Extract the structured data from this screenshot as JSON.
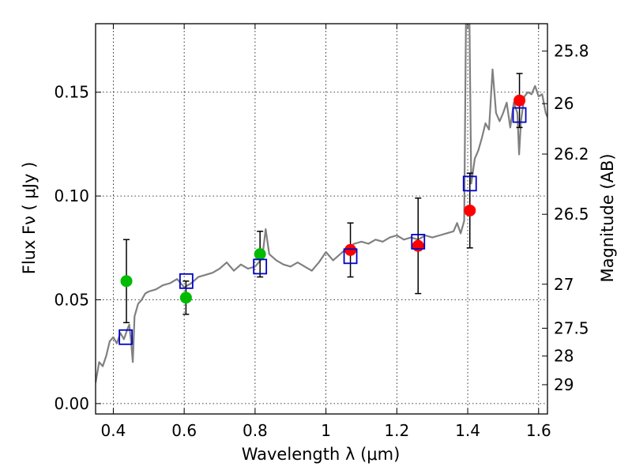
{
  "chart_data": {
    "type": "scatter",
    "title": "",
    "xlabel": "Wavelength  λ (μm)",
    "ylabel": "Flux  Fν  ( μJy )",
    "y2label": "Magnitude (AB)",
    "xlim": [
      0.35,
      1.625
    ],
    "ylim": [
      -0.005,
      0.183
    ],
    "xticks": [
      0.4,
      0.6,
      0.8,
      1.0,
      1.2,
      1.4,
      1.6
    ],
    "xtick_labels": [
      "0.4",
      "0.6",
      "0.8",
      "1",
      "1.2",
      "1.4",
      "1.6"
    ],
    "yticks": [
      0.0,
      0.05,
      0.1,
      0.15
    ],
    "ytick_labels": [
      "0.00",
      "0.05",
      "0.10",
      "0.15"
    ],
    "mag_ticks": [
      {
        "label": "25.8",
        "flux": 0.1698
      },
      {
        "label": "26",
        "flux": 0.1445
      },
      {
        "label": "26.2",
        "flux": 0.1202
      },
      {
        "label": "26.5",
        "flux": 0.0912
      },
      {
        "label": "27",
        "flux": 0.0575
      },
      {
        "label": "27.5",
        "flux": 0.0363
      },
      {
        "label": "28",
        "flux": 0.0229
      },
      {
        "label": "29",
        "flux": 0.0091
      }
    ],
    "grid": true,
    "colors": {
      "spectrum": "#808080",
      "green_points": "#00bb00",
      "red_points": "#ff0000",
      "model_boxes": "#0000cc",
      "errorbars": "#000000"
    },
    "series": [
      {
        "type": "line",
        "points": [
          [
            0.35,
            0.01
          ],
          [
            0.36,
            0.02
          ],
          [
            0.37,
            0.018
          ],
          [
            0.38,
            0.023
          ],
          [
            0.39,
            0.03
          ],
          [
            0.4,
            0.032
          ],
          [
            0.41,
            0.029
          ],
          [
            0.42,
            0.034
          ],
          [
            0.43,
            0.031
          ],
          [
            0.44,
            0.036
          ],
          [
            0.445,
            0.038
          ],
          [
            0.45,
            0.03
          ],
          [
            0.455,
            0.02
          ],
          [
            0.46,
            0.042
          ],
          [
            0.47,
            0.048
          ],
          [
            0.48,
            0.05
          ],
          [
            0.49,
            0.053
          ],
          [
            0.5,
            0.054
          ],
          [
            0.52,
            0.055
          ],
          [
            0.54,
            0.057
          ],
          [
            0.56,
            0.058
          ],
          [
            0.58,
            0.06
          ],
          [
            0.6,
            0.056
          ],
          [
            0.62,
            0.058
          ],
          [
            0.64,
            0.061
          ],
          [
            0.66,
            0.062
          ],
          [
            0.68,
            0.063
          ],
          [
            0.7,
            0.065
          ],
          [
            0.72,
            0.068
          ],
          [
            0.74,
            0.064
          ],
          [
            0.76,
            0.067
          ],
          [
            0.78,
            0.065
          ],
          [
            0.8,
            0.066
          ],
          [
            0.81,
            0.068
          ],
          [
            0.82,
            0.07
          ],
          [
            0.83,
            0.084
          ],
          [
            0.84,
            0.072
          ],
          [
            0.86,
            0.069
          ],
          [
            0.88,
            0.067
          ],
          [
            0.9,
            0.066
          ],
          [
            0.92,
            0.068
          ],
          [
            0.94,
            0.066
          ],
          [
            0.96,
            0.064
          ],
          [
            0.98,
            0.068
          ],
          [
            1.0,
            0.073
          ],
          [
            1.02,
            0.069
          ],
          [
            1.04,
            0.072
          ],
          [
            1.06,
            0.075
          ],
          [
            1.08,
            0.077
          ],
          [
            1.1,
            0.078
          ],
          [
            1.12,
            0.077
          ],
          [
            1.14,
            0.079
          ],
          [
            1.16,
            0.078
          ],
          [
            1.18,
            0.08
          ],
          [
            1.2,
            0.081
          ],
          [
            1.22,
            0.079
          ],
          [
            1.24,
            0.08
          ],
          [
            1.26,
            0.079
          ],
          [
            1.28,
            0.081
          ],
          [
            1.3,
            0.08
          ],
          [
            1.32,
            0.081
          ],
          [
            1.34,
            0.082
          ],
          [
            1.36,
            0.083
          ],
          [
            1.37,
            0.087
          ],
          [
            1.38,
            0.082
          ],
          [
            1.39,
            0.088
          ],
          [
            1.395,
            0.183
          ],
          [
            1.405,
            0.183
          ],
          [
            1.41,
            0.106
          ],
          [
            1.42,
            0.118
          ],
          [
            1.43,
            0.122
          ],
          [
            1.44,
            0.128
          ],
          [
            1.45,
            0.135
          ],
          [
            1.46,
            0.132
          ],
          [
            1.47,
            0.161
          ],
          [
            1.48,
            0.14
          ],
          [
            1.49,
            0.136
          ],
          [
            1.5,
            0.14
          ],
          [
            1.51,
            0.145
          ],
          [
            1.52,
            0.133
          ],
          [
            1.53,
            0.145
          ],
          [
            1.54,
            0.14
          ],
          [
            1.545,
            0.12
          ],
          [
            1.55,
            0.136
          ],
          [
            1.56,
            0.148
          ],
          [
            1.57,
            0.15
          ],
          [
            1.58,
            0.149
          ],
          [
            1.59,
            0.153
          ],
          [
            1.6,
            0.148
          ],
          [
            1.61,
            0.149
          ],
          [
            1.62,
            0.14
          ],
          [
            1.625,
            0.138
          ]
        ]
      },
      {
        "type": "scatter",
        "marker": "circle",
        "color": "green",
        "points": [
          {
            "x": 0.437,
            "y": 0.059,
            "err": 0.02
          },
          {
            "x": 0.605,
            "y": 0.051,
            "err": 0.008
          },
          {
            "x": 0.814,
            "y": 0.072,
            "err": 0.011
          }
        ]
      },
      {
        "type": "scatter",
        "marker": "circle",
        "color": "red",
        "points": [
          {
            "x": 1.069,
            "y": 0.074,
            "err": 0.013
          },
          {
            "x": 1.26,
            "y": 0.076,
            "err": 0.023
          },
          {
            "x": 1.406,
            "y": 0.093,
            "err": 0.018
          },
          {
            "x": 1.546,
            "y": 0.146,
            "err": 0.013
          }
        ]
      },
      {
        "type": "scatter",
        "marker": "square-open",
        "color": "blue",
        "points": [
          {
            "x": 0.435,
            "y": 0.032
          },
          {
            "x": 0.606,
            "y": 0.059
          },
          {
            "x": 0.814,
            "y": 0.066
          },
          {
            "x": 1.069,
            "y": 0.071
          },
          {
            "x": 1.26,
            "y": 0.078
          },
          {
            "x": 1.406,
            "y": 0.106
          },
          {
            "x": 1.546,
            "y": 0.139
          }
        ]
      }
    ]
  }
}
